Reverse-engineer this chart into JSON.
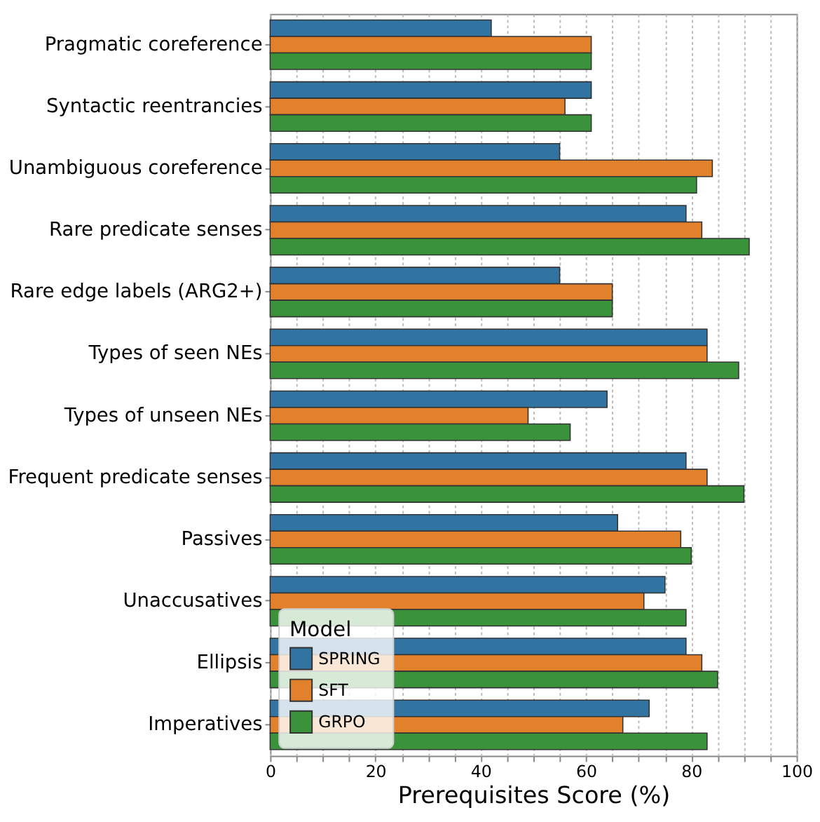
{
  "chart_data": {
    "type": "bar",
    "orientation": "horizontal",
    "xlabel": "Prerequisites Score (%)",
    "legend_title": "Model",
    "legend": "bottom left",
    "grid": "x",
    "categories": [
      "Pragmatic coreference",
      "Syntactic reentrancies",
      "Unambiguous coreference",
      "Rare predicate senses",
      "Rare edge labels (ARG2+)",
      "Types of seen NEs",
      "Types of unseen NEs",
      "Frequent predicate senses",
      "Passives",
      "Unaccusatives",
      "Ellipsis",
      "Imperatives"
    ],
    "series": [
      {
        "name": "SPRING",
        "color": "#3274a1",
        "values": [
          42,
          61,
          55,
          79,
          55,
          83,
          64,
          79,
          66,
          75,
          79,
          72
        ]
      },
      {
        "name": "SFT",
        "color": "#e1812c",
        "values": [
          61,
          56,
          84,
          82,
          65,
          83,
          49,
          83,
          78,
          71,
          82,
          67
        ]
      },
      {
        "name": "GRPO",
        "color": "#3a923a",
        "values": [
          61,
          61,
          81,
          91,
          65,
          89,
          57,
          90,
          80,
          79,
          85,
          83
        ]
      }
    ],
    "xlim": [
      0,
      100
    ],
    "xticks": [
      0,
      {
        "value": 5,
        "label": null
      },
      {
        "value": 10,
        "label": null
      },
      {
        "value": 15,
        "label": null
      },
      20,
      {
        "value": 25,
        "label": null
      },
      {
        "value": 30,
        "label": null
      },
      {
        "value": 35,
        "label": null
      },
      40,
      {
        "value": 45,
        "label": null
      },
      {
        "value": 50,
        "label": null
      },
      {
        "value": 55,
        "label": null
      },
      60,
      {
        "value": 65,
        "label": null
      },
      {
        "value": 70,
        "label": null
      },
      {
        "value": 75,
        "label": null
      },
      80,
      {
        "value": 85,
        "label": null
      },
      {
        "value": 90,
        "label": null
      },
      {
        "value": 95,
        "label": null
      },
      100
    ]
  }
}
